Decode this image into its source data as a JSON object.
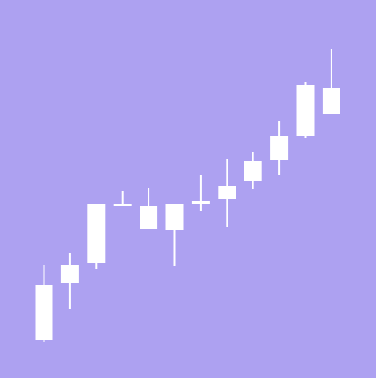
{
  "chart_data": {
    "type": "candlestick",
    "title": "",
    "xlabel": "",
    "ylabel": "",
    "grid": false,
    "legend": "none",
    "axes_visible": false,
    "ylim": [
      0,
      425
    ],
    "candles": [
      {
        "open": 105,
        "high": 127,
        "low": 40,
        "close": 43
      },
      {
        "open": 107,
        "high": 140,
        "low": 78,
        "close": 127
      },
      {
        "open": 129,
        "high": 196,
        "low": 123,
        "close": 196
      },
      {
        "open": 196,
        "high": 210,
        "low": 193,
        "close": 193
      },
      {
        "open": 193,
        "high": 214,
        "low": 167,
        "close": 168
      },
      {
        "open": 196,
        "high": 196,
        "low": 126,
        "close": 166
      },
      {
        "open": 196,
        "high": 228,
        "low": 188,
        "close": 199
      },
      {
        "open": 201,
        "high": 246,
        "low": 170,
        "close": 216
      },
      {
        "open": 221,
        "high": 254,
        "low": 212,
        "close": 244
      },
      {
        "open": 245,
        "high": 289,
        "low": 228,
        "close": 272
      },
      {
        "open": 272,
        "high": 333,
        "low": 270,
        "close": 329
      },
      {
        "open": 326,
        "high": 370,
        "low": 297,
        "close": 297
      }
    ]
  },
  "colors": {
    "background": "#ada1f1",
    "candle": "#ffffff"
  }
}
